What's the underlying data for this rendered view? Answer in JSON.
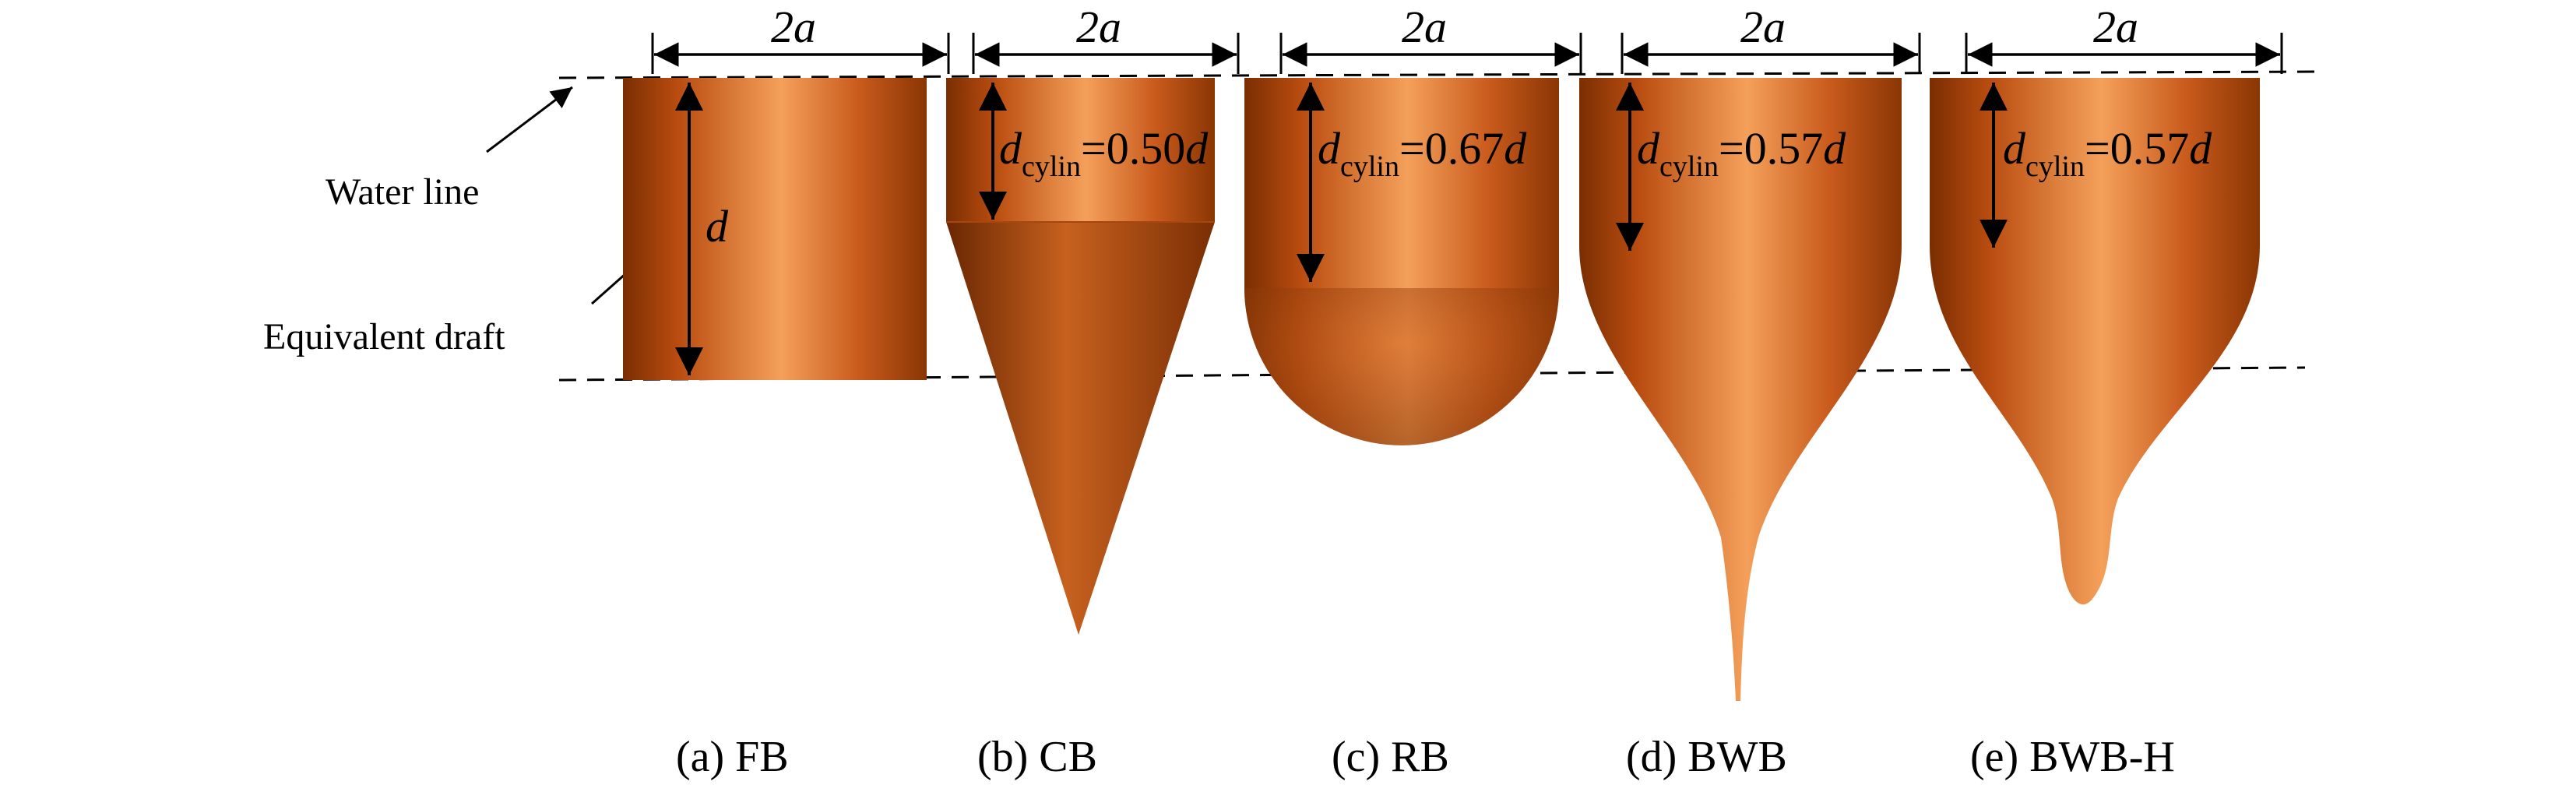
{
  "labels": {
    "water_line": "Water line",
    "equivalent_draft": "Equivalent draft",
    "draft_symbol": "d"
  },
  "dimension_label": "2a",
  "colors": {
    "body_dark": "#8a3604",
    "body_mid": "#c9591a",
    "body_light": "#f29a52",
    "line": "#000000"
  },
  "buoys": [
    {
      "id": "fb",
      "caption": "(a) FB",
      "annotation": null
    },
    {
      "id": "cb",
      "caption": "(b) CB",
      "annotation": {
        "main": "d",
        "sub": "cylin",
        "value": "=0.50",
        "unit": "d"
      }
    },
    {
      "id": "rb",
      "caption": "(c) RB",
      "annotation": {
        "main": "d",
        "sub": "cylin",
        "value": "=0.67",
        "unit": "d"
      }
    },
    {
      "id": "bwb",
      "caption": "(d) BWB",
      "annotation": {
        "main": "d",
        "sub": "cylin",
        "value": "=0.57",
        "unit": "d"
      }
    },
    {
      "id": "bwbh",
      "caption": "(e) BWB-H",
      "annotation": {
        "main": "d",
        "sub": "cylin",
        "value": "=0.57",
        "unit": "d"
      }
    }
  ]
}
